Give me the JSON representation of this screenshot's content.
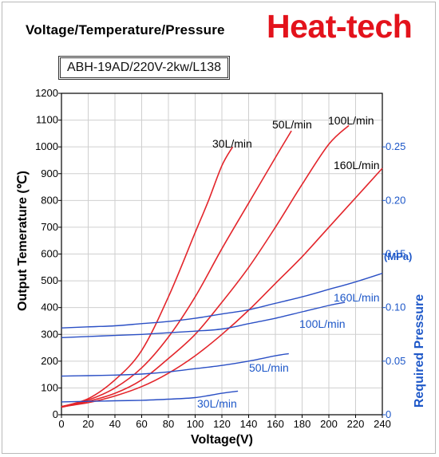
{
  "header": {
    "title": "Voltage/Temperature/Pressure",
    "brand": "Heat-tech",
    "model": "ABH-19AD/220V-2kw/L138"
  },
  "colors": {
    "temperature_series": "#e3252b",
    "pressure_series": "#2a4fc5",
    "brand": "#e3121b",
    "right_axis": "#1d57c8"
  },
  "chart_data": {
    "type": "line",
    "title": "Voltage/Temperature/Pressure",
    "xlabel": "Voltage(V)",
    "ylabel": "Output Temerature (℃)",
    "y2label": "Required Pressure",
    "y2unit": "(MPa)",
    "xlim": [
      0,
      240
    ],
    "ylim": [
      0,
      1200
    ],
    "y2lim": [
      0,
      0.3
    ],
    "grid": true,
    "x_ticks": [
      "0",
      "20",
      "40",
      "60",
      "80",
      "100",
      "120",
      "140",
      "160",
      "180",
      "200",
      "220",
      "240"
    ],
    "y_ticks": [
      "0",
      "100",
      "200",
      "300",
      "400",
      "500",
      "600",
      "700",
      "800",
      "900",
      "1000",
      "1100",
      "1200"
    ],
    "y2_ticks": [
      "0",
      "0.05",
      "0.10",
      "0.15",
      "0.20",
      "0.25"
    ],
    "temperature_series": [
      {
        "name": "30L/min",
        "x": [
          0,
          20,
          40,
          60,
          80,
          100,
          110,
          120,
          128
        ],
        "y": [
          30,
          60,
          130,
          240,
          440,
          680,
          800,
          930,
          1000
        ]
      },
      {
        "name": "50L/min",
        "x": [
          0,
          20,
          40,
          60,
          80,
          100,
          120,
          140,
          160,
          172
        ],
        "y": [
          30,
          55,
          100,
          175,
          290,
          440,
          620,
          790,
          960,
          1060
        ]
      },
      {
        "name": "100L/min",
        "x": [
          0,
          20,
          40,
          60,
          80,
          100,
          120,
          140,
          160,
          180,
          200,
          215
        ],
        "y": [
          28,
          50,
          80,
          130,
          210,
          300,
          420,
          550,
          700,
          860,
          1010,
          1080
        ]
      },
      {
        "name": "160L/min",
        "x": [
          0,
          20,
          40,
          60,
          80,
          100,
          120,
          140,
          160,
          180,
          200,
          220,
          240
        ],
        "y": [
          30,
          45,
          70,
          105,
          155,
          220,
          300,
          390,
          490,
          590,
          700,
          810,
          920
        ]
      }
    ],
    "pressure_series": [
      {
        "name": "30L/min",
        "x": [
          0,
          20,
          40,
          60,
          80,
          100,
          120,
          132
        ],
        "y": [
          0.012,
          0.0125,
          0.013,
          0.0135,
          0.0145,
          0.016,
          0.02,
          0.022
        ]
      },
      {
        "name": "50L/min",
        "x": [
          0,
          20,
          40,
          60,
          80,
          100,
          120,
          140,
          160,
          170
        ],
        "y": [
          0.036,
          0.0365,
          0.037,
          0.038,
          0.04,
          0.043,
          0.046,
          0.05,
          0.055,
          0.057
        ]
      },
      {
        "name": "100L/min",
        "x": [
          0,
          20,
          40,
          60,
          80,
          100,
          120,
          140,
          160,
          180,
          200,
          212
        ],
        "y": [
          0.072,
          0.073,
          0.074,
          0.075,
          0.0765,
          0.078,
          0.08,
          0.085,
          0.09,
          0.096,
          0.102,
          0.105
        ]
      },
      {
        "name": "160L/min",
        "x": [
          0,
          20,
          40,
          60,
          80,
          100,
          120,
          140,
          160,
          180,
          200,
          220,
          240
        ],
        "y": [
          0.081,
          0.082,
          0.083,
          0.085,
          0.087,
          0.09,
          0.094,
          0.098,
          0.104,
          0.11,
          0.117,
          0.124,
          0.132
        ]
      }
    ]
  }
}
